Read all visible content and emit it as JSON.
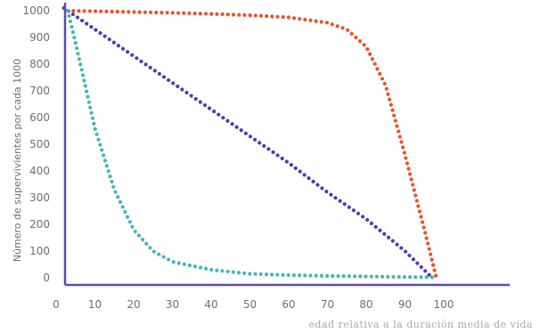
{
  "chart_data": {
    "type": "scatter",
    "title": "",
    "xlabel": "edad relativa a la duración media de vida",
    "ylabel": "Número de supervivientes por cada 1000",
    "xlim": [
      0,
      110
    ],
    "ylim": [
      0,
      1000
    ],
    "x_ticks": [
      "0",
      "10",
      "20",
      "30",
      "40",
      "50",
      "60",
      "70",
      "80",
      "90",
      "100"
    ],
    "y_ticks": [
      "0",
      "100",
      "200",
      "300",
      "400",
      "500",
      "600",
      "700",
      "800",
      "900",
      "1000"
    ],
    "grid": false,
    "legend": "none",
    "series": [
      {
        "color": "#e8532a",
        "x": [
          3,
          10,
          20,
          30,
          40,
          50,
          60,
          70,
          75,
          80,
          85,
          90,
          95,
          98
        ],
        "y": [
          1000,
          998,
          995,
          992,
          988,
          983,
          975,
          955,
          930,
          865,
          720,
          460,
          180,
          5
        ]
      },
      {
        "color": "#4b3fb0",
        "x": [
          2,
          10,
          20,
          30,
          40,
          50,
          60,
          70,
          80,
          90,
          97
        ],
        "y": [
          1010,
          930,
          830,
          730,
          630,
          530,
          430,
          320,
          220,
          100,
          0
        ]
      },
      {
        "color": "#4ab3b8",
        "x": [
          3,
          5,
          10,
          15,
          20,
          25,
          30,
          40,
          50,
          60,
          70,
          80,
          90,
          98
        ],
        "y": [
          1000,
          880,
          560,
          330,
          180,
          100,
          60,
          30,
          15,
          10,
          7,
          5,
          3,
          2
        ]
      }
    ]
  }
}
